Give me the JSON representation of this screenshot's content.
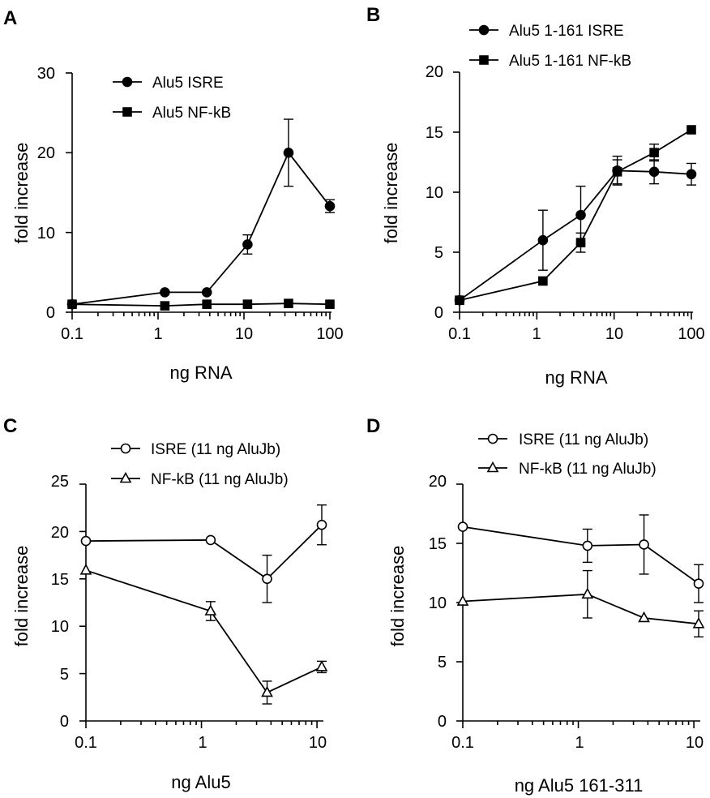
{
  "chart_data": [
    {
      "panel": "A",
      "type": "line",
      "xscale": "log",
      "xlim": [
        0.1,
        100
      ],
      "ylim": [
        0,
        30
      ],
      "xticks": [
        0.1,
        1,
        10,
        100
      ],
      "xtick_labels": [
        "0.1",
        "1",
        "10",
        "100"
      ],
      "yticks": [
        0,
        10,
        20,
        30
      ],
      "ytick_labels": [
        "0",
        "10",
        "20",
        "30"
      ],
      "xlabel": "ng RNA",
      "ylabel": "fold increase",
      "legend_position": "top-left",
      "series": [
        {
          "name": "Alu5 ISRE",
          "marker": "circle",
          "filled": true,
          "x": [
            0.1,
            1.2,
            3.7,
            11,
            33,
            100
          ],
          "y": [
            1.0,
            2.5,
            2.5,
            8.5,
            20.0,
            13.3
          ],
          "err": [
            0,
            0,
            0,
            1.2,
            4.2,
            0.8
          ]
        },
        {
          "name": "Alu5 NF-kB",
          "marker": "square",
          "filled": true,
          "x": [
            0.1,
            1.2,
            3.7,
            11,
            33,
            100
          ],
          "y": [
            1.0,
            0.8,
            1.0,
            1.0,
            1.1,
            1.0
          ],
          "err": [
            0,
            0,
            0,
            0,
            0,
            0
          ]
        }
      ]
    },
    {
      "panel": "B",
      "type": "line",
      "xscale": "log",
      "xlim": [
        0.1,
        100
      ],
      "ylim": [
        0,
        20
      ],
      "xticks": [
        0.1,
        1,
        10,
        100
      ],
      "xtick_labels": [
        "0.1",
        "1",
        "10",
        "100"
      ],
      "yticks": [
        0,
        5,
        10,
        15,
        20
      ],
      "ytick_labels": [
        "0",
        "5",
        "10",
        "15",
        "20"
      ],
      "xlabel": "ng RNA",
      "ylabel": "fold increase",
      "legend_position": "top-left",
      "series": [
        {
          "name": "Alu5 1-161 ISRE",
          "marker": "circle",
          "filled": true,
          "x": [
            0.1,
            1.2,
            3.7,
            11,
            33,
            100
          ],
          "y": [
            1.0,
            6.0,
            8.1,
            11.8,
            11.7,
            11.5
          ],
          "err": [
            0,
            2.5,
            2.4,
            1.2,
            1.0,
            0.9
          ]
        },
        {
          "name": "Alu5 1-161 NF-kB",
          "marker": "square",
          "filled": true,
          "x": [
            0.1,
            1.2,
            3.7,
            11,
            33,
            100
          ],
          "y": [
            1.0,
            2.6,
            5.8,
            11.7,
            13.3,
            15.2
          ],
          "err": [
            0,
            0,
            0.8,
            1.0,
            0.7,
            0
          ]
        }
      ]
    },
    {
      "panel": "C",
      "type": "line",
      "xscale": "log",
      "xlim": [
        0.1,
        11
      ],
      "ylim": [
        0,
        25
      ],
      "xticks": [
        0.1,
        1,
        10
      ],
      "xtick_labels": [
        "0.1",
        "1",
        "10"
      ],
      "yticks": [
        0,
        5,
        10,
        15,
        20,
        25
      ],
      "ytick_labels": [
        "0",
        "5",
        "10",
        "15",
        "20",
        "25"
      ],
      "xlabel": "ng Alu5",
      "ylabel": "fold increase",
      "legend_position": "top-right",
      "series": [
        {
          "name": "ISRE (11 ng AluJb)",
          "marker": "circle",
          "filled": false,
          "x": [
            0.1,
            1.2,
            3.7,
            11
          ],
          "y": [
            19.0,
            19.1,
            15.0,
            20.7
          ],
          "err": [
            0,
            0,
            2.5,
            2.1
          ]
        },
        {
          "name": "NF-kB (11 ng AluJb)",
          "marker": "triangle",
          "filled": false,
          "x": [
            0.1,
            1.2,
            3.7,
            11
          ],
          "y": [
            15.9,
            11.6,
            3.0,
            5.7
          ],
          "err": [
            0,
            1.0,
            1.2,
            0.6
          ]
        }
      ]
    },
    {
      "panel": "D",
      "type": "line",
      "xscale": "log",
      "xlim": [
        0.1,
        11
      ],
      "ylim": [
        0,
        20
      ],
      "xticks": [
        0.1,
        1,
        10
      ],
      "xtick_labels": [
        "0.1",
        "1",
        "10"
      ],
      "yticks": [
        0,
        5,
        10,
        15,
        20
      ],
      "ytick_labels": [
        "0",
        "5",
        "10",
        "15",
        "20"
      ],
      "xlabel": "ng Alu5 161-311",
      "ylabel": "fold increase",
      "legend_position": "top-right",
      "series": [
        {
          "name": "ISRE (11 ng AluJb)",
          "marker": "circle",
          "filled": false,
          "x": [
            0.1,
            1.2,
            3.7,
            11
          ],
          "y": [
            16.4,
            14.8,
            14.9,
            11.6
          ],
          "err": [
            0,
            1.4,
            2.5,
            1.6
          ]
        },
        {
          "name": "NF-kB (11 ng AluJb)",
          "marker": "triangle",
          "filled": false,
          "x": [
            0.1,
            1.2,
            3.7,
            11
          ],
          "y": [
            10.1,
            10.7,
            8.7,
            8.2
          ],
          "err": [
            0,
            2.0,
            0,
            1.1
          ]
        }
      ]
    }
  ]
}
